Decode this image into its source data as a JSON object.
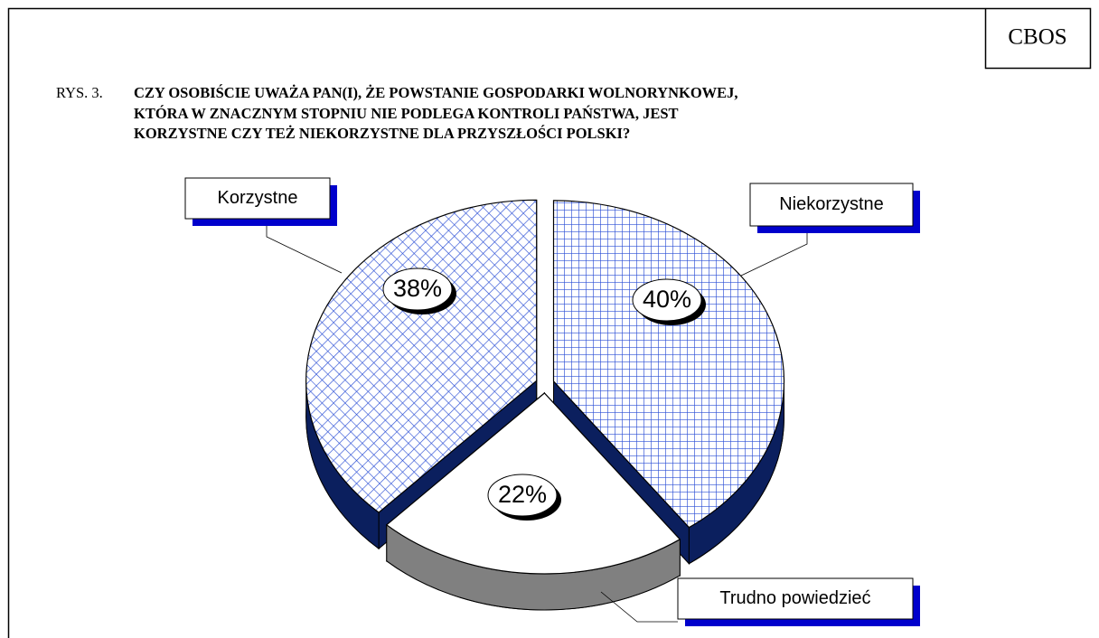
{
  "chart_data": {
    "type": "pie",
    "source": "CBOS",
    "figure_label": "RYS. 3.",
    "title": "CZY OSOBIŚCIE UWAŻA PAN(I), ŻE POWSTANIE GOSPODARKI WOLNORYNKOWEJ,\nKTÓRA W ZNACZNYM STOPNIU NIE PODLEGA KONTROLI PAŃSTWA, JEST\nKORZYSTNE CZY TEŻ NIEKORZYSTNE DLA PRZYSZŁOŚCI POLSKI?",
    "categories": [
      "Korzystne",
      "Niekorzystne",
      "Trudno powiedzieć"
    ],
    "values": [
      38,
      40,
      22
    ],
    "value_labels": [
      "38%",
      "40%",
      "22%"
    ],
    "colors": [
      "#2b4fd6",
      "#2b4fd6",
      "#ffffff"
    ],
    "patterns": [
      "diagonal-crosshatch",
      "grid-crosshatch",
      "none"
    ],
    "side_colors": [
      "#0b1f5e",
      "#0b1f5e",
      "#808080"
    ],
    "start_slice": 1
  }
}
